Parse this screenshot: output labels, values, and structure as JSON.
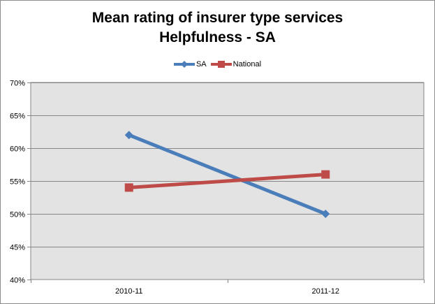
{
  "chart_data": {
    "type": "line",
    "title_lines": [
      "Mean rating of insurer type services",
      "Helpfulness - SA"
    ],
    "categories": [
      "2010-11",
      "2011-12"
    ],
    "series": [
      {
        "name": "SA",
        "values": [
          62,
          50
        ],
        "color": "#4a7ebb",
        "marker": "diamond"
      },
      {
        "name": "National",
        "values": [
          54,
          56
        ],
        "color": "#be4b48",
        "marker": "square"
      }
    ],
    "y_ticks": [
      "40%",
      "45%",
      "50%",
      "55%",
      "60%",
      "65%",
      "70%"
    ],
    "y_tick_values": [
      40,
      45,
      50,
      55,
      60,
      65,
      70
    ],
    "ylim": [
      40,
      70
    ],
    "grid": true,
    "legend_position": "top",
    "plot_background": "#e3e3e3"
  }
}
